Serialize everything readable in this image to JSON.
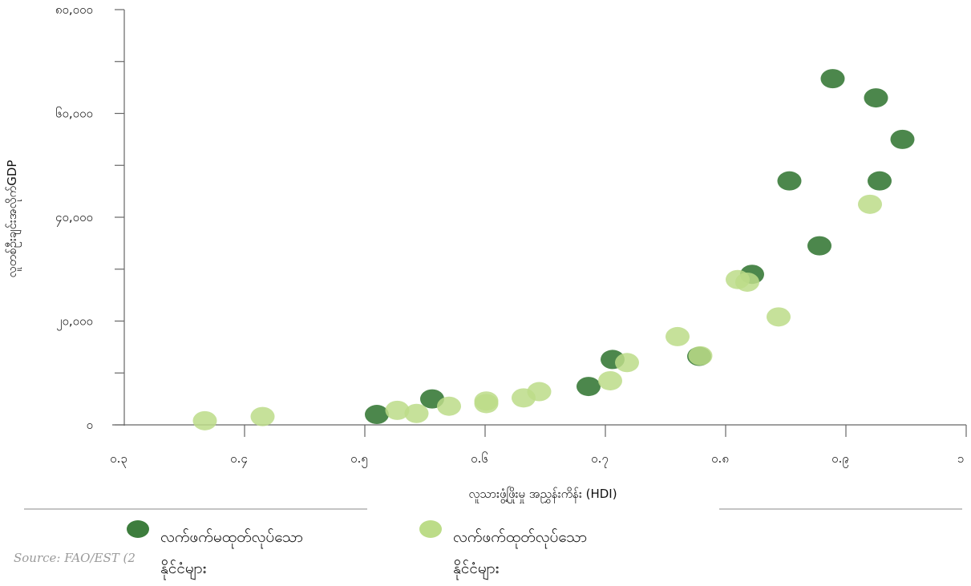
{
  "chart_data": {
    "type": "scatter",
    "xlabel": "လူသားဖွံ့ဖြိုးမှု အညွှန်းကိန်း (HDI)",
    "ylabel": "လူတစ်ဦးချင်းအလိုက်GDP",
    "xlim": [
      0.3,
      1.0
    ],
    "ylim": [
      0,
      80000
    ],
    "x_ticks": [
      {
        "value": 0.3,
        "label": "၀.၃"
      },
      {
        "value": 0.4,
        "label": "၀.၄"
      },
      {
        "value": 0.5,
        "label": "၀.၅"
      },
      {
        "value": 0.6,
        "label": "၀.၆"
      },
      {
        "value": 0.7,
        "label": "၀.၇"
      },
      {
        "value": 0.8,
        "label": "၀.၈"
      },
      {
        "value": 0.9,
        "label": "၀.၉"
      },
      {
        "value": 1.0,
        "label": "၁"
      }
    ],
    "y_ticks": [
      {
        "value": 0,
        "label": "၀"
      },
      {
        "value": 20000,
        "label": "၂၀,၀၀၀"
      },
      {
        "value": 40000,
        "label": "၄၀,၀၀၀"
      },
      {
        "value": 60000,
        "label": "၆၀,၀၀၀"
      },
      {
        "value": 80000,
        "label": "၈၀,၀၀၀"
      }
    ],
    "y_minor_ticks": [
      10000,
      30000,
      50000,
      70000
    ],
    "grid": false,
    "legend_position": "bottom",
    "series": [
      {
        "name": "လက်ဖက်မထုတ်လုပ်သော နိုင်ငံများ",
        "color": "#3d7d3d",
        "points": [
          {
            "x": 0.51,
            "y": 2000
          },
          {
            "x": 0.556,
            "y": 5000
          },
          {
            "x": 0.686,
            "y": 7400
          },
          {
            "x": 0.706,
            "y": 12600
          },
          {
            "x": 0.778,
            "y": 13200
          },
          {
            "x": 0.822,
            "y": 29000
          },
          {
            "x": 0.853,
            "y": 47000
          },
          {
            "x": 0.878,
            "y": 34500
          },
          {
            "x": 0.889,
            "y": 66700
          },
          {
            "x": 0.925,
            "y": 63000
          },
          {
            "x": 0.928,
            "y": 47000
          },
          {
            "x": 0.947,
            "y": 55000
          }
        ]
      },
      {
        "name": "လက်ဖက်ထုတ်လုပ်သော နိုင်ငံများ",
        "color": "#bcdc88",
        "points": [
          {
            "x": 0.367,
            "y": 800
          },
          {
            "x": 0.415,
            "y": 1600
          },
          {
            "x": 0.527,
            "y": 2800
          },
          {
            "x": 0.543,
            "y": 2200
          },
          {
            "x": 0.57,
            "y": 3600
          },
          {
            "x": 0.601,
            "y": 4600
          },
          {
            "x": 0.601,
            "y": 4100
          },
          {
            "x": 0.632,
            "y": 5200
          },
          {
            "x": 0.645,
            "y": 6400
          },
          {
            "x": 0.704,
            "y": 8500
          },
          {
            "x": 0.718,
            "y": 12000
          },
          {
            "x": 0.76,
            "y": 17000
          },
          {
            "x": 0.779,
            "y": 13300
          },
          {
            "x": 0.81,
            "y": 28000
          },
          {
            "x": 0.818,
            "y": 27500
          },
          {
            "x": 0.844,
            "y": 20800
          },
          {
            "x": 0.92,
            "y": 42500
          }
        ]
      }
    ]
  },
  "legend": [
    {
      "label_line1": "လက်ဖက်မထုတ်လုပ်သော",
      "label_line2": "နိုင်ငံများ",
      "color": "#3d7d3d"
    },
    {
      "label_line1": "လက်ဖက်ထုတ်လုပ်သော",
      "label_line2": "နိုင်ငံများ",
      "color": "#bcdc88"
    }
  ],
  "source": "Source: FAO/EST (2"
}
